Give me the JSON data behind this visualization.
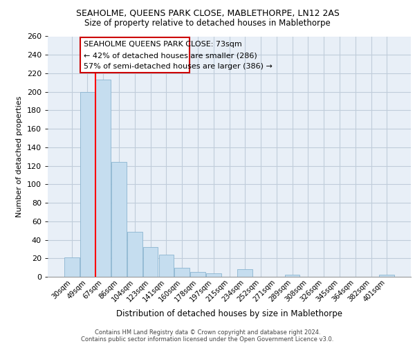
{
  "title1": "SEAHOLME, QUEENS PARK CLOSE, MABLETHORPE, LN12 2AS",
  "title2": "Size of property relative to detached houses in Mablethorpe",
  "xlabel": "Distribution of detached houses by size in Mablethorpe",
  "ylabel": "Number of detached properties",
  "bar_labels": [
    "30sqm",
    "49sqm",
    "67sqm",
    "86sqm",
    "104sqm",
    "123sqm",
    "141sqm",
    "160sqm",
    "178sqm",
    "197sqm",
    "215sqm",
    "234sqm",
    "252sqm",
    "271sqm",
    "289sqm",
    "308sqm",
    "326sqm",
    "345sqm",
    "364sqm",
    "382sqm",
    "401sqm"
  ],
  "bar_values": [
    21,
    200,
    213,
    124,
    49,
    32,
    24,
    10,
    5,
    4,
    0,
    8,
    0,
    0,
    2,
    0,
    0,
    0,
    0,
    0,
    2
  ],
  "bar_color": "#c5ddef",
  "bar_edge_color": "#8ab4d0",
  "annotation_text_line1": "SEAHOLME QUEENS PARK CLOSE: 73sqm",
  "annotation_text_line2": "← 42% of detached houses are smaller (286)",
  "annotation_text_line3": "57% of semi-detached houses are larger (386) →",
  "red_line_x": 1.5,
  "ylim": [
    0,
    260
  ],
  "yticks": [
    0,
    20,
    40,
    60,
    80,
    100,
    120,
    140,
    160,
    180,
    200,
    220,
    240,
    260
  ],
  "footer_line1": "Contains HM Land Registry data © Crown copyright and database right 2024.",
  "footer_line2": "Contains public sector information licensed under the Open Government Licence v3.0.",
  "chart_bg_color": "#e8eff7",
  "grid_color": "#c0ccda",
  "fig_bg_color": "#ffffff"
}
